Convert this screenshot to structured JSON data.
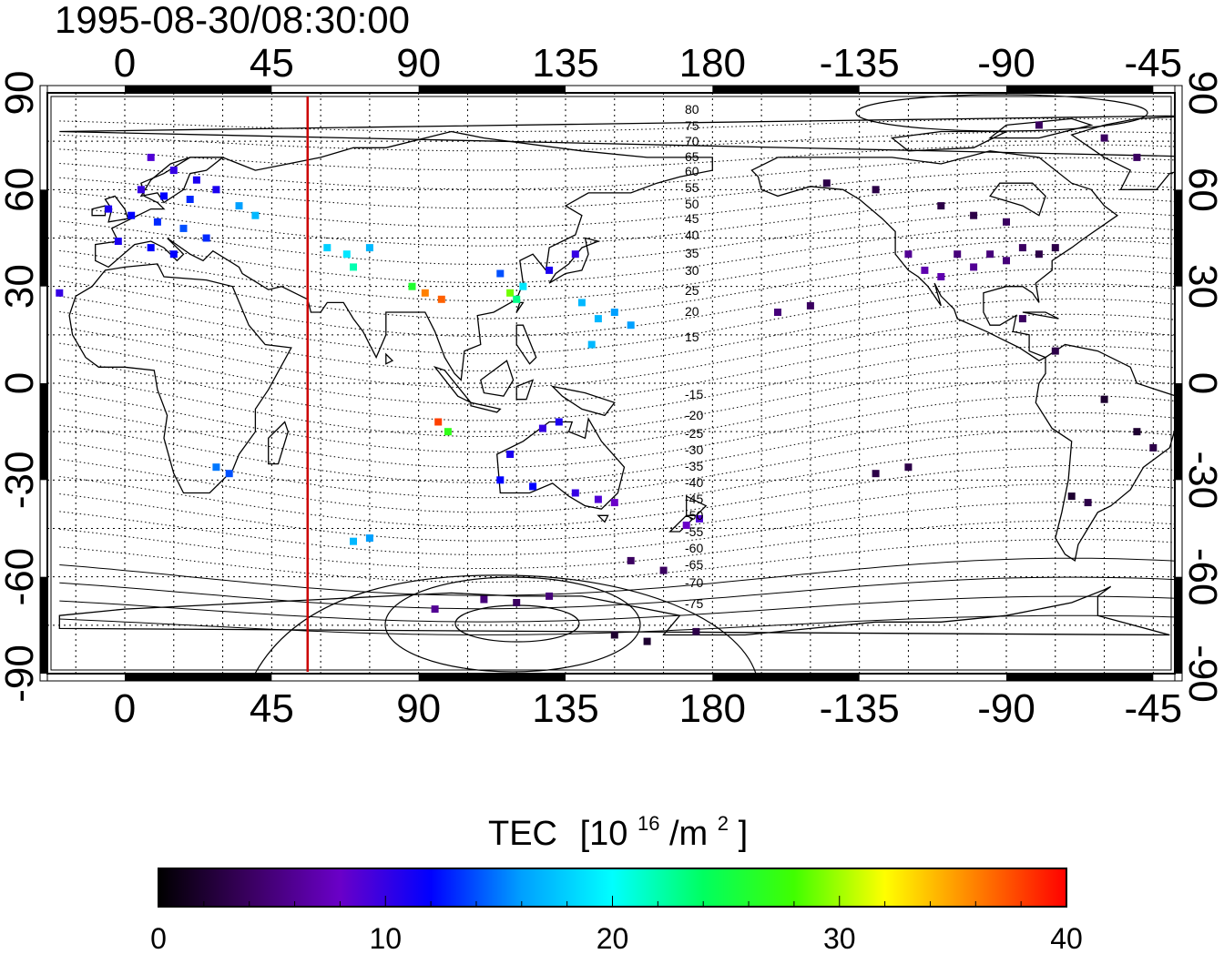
{
  "title": "1995-08-30/08:30:00",
  "top_axis_labels": [
    "0",
    "45",
    "90",
    "135",
    "180",
    "-135",
    "-90",
    "-45"
  ],
  "bottom_axis_labels": [
    "0",
    "45",
    "90",
    "135",
    "180",
    "-135",
    "-90",
    "-45"
  ],
  "left_axis_labels": [
    "90",
    "60",
    "30",
    "0",
    "-30",
    "-60",
    "-90"
  ],
  "right_axis_labels": [
    "90",
    "60",
    "30",
    "0",
    "-30",
    "-60",
    "-90"
  ],
  "contour_labels_north": [
    "80",
    "75",
    "70",
    "65",
    "60",
    "55",
    "50",
    "45",
    "40",
    "35",
    "30",
    "25",
    "20",
    "15"
  ],
  "contour_labels_south": [
    "-15",
    "-20",
    "-25",
    "-30",
    "-35",
    "-40",
    "-45",
    "-50",
    "-55",
    "-60",
    "-65",
    "-70",
    "-75"
  ],
  "colorbar": {
    "title": "TEC",
    "unit_base": "[10",
    "unit_exp": "16",
    "unit_mid": "/m",
    "unit_exp2": "2",
    "unit_end": "]",
    "tick_labels": [
      "0",
      "10",
      "20",
      "30",
      "40"
    ],
    "min": 0,
    "max": 40,
    "stops": [
      "#000000",
      "#3a0060",
      "#6a00c8",
      "#0000ff",
      "#00a0ff",
      "#00ffff",
      "#00ff60",
      "#40ff00",
      "#ffff00",
      "#ff8000",
      "#ff0000"
    ]
  },
  "map": {
    "longitude_center": 50,
    "lon_range": [
      -20,
      337
    ],
    "lat_range": [
      -90,
      90
    ],
    "terminator_longitude": 56,
    "terminator_color": "#cc0000",
    "grid": true
  },
  "tec_observations": [
    {
      "lon": 8,
      "lat": 70,
      "tec": 9
    },
    {
      "lon": 15,
      "lat": 66,
      "tec": 10
    },
    {
      "lon": 22,
      "lat": 63,
      "tec": 11
    },
    {
      "lon": 5,
      "lat": 60,
      "tec": 10
    },
    {
      "lon": 12,
      "lat": 58,
      "tec": 12
    },
    {
      "lon": 20,
      "lat": 57,
      "tec": 13
    },
    {
      "lon": 28,
      "lat": 60,
      "tec": 11
    },
    {
      "lon": -5,
      "lat": 54,
      "tec": 11
    },
    {
      "lon": 2,
      "lat": 52,
      "tec": 12
    },
    {
      "lon": 10,
      "lat": 50,
      "tec": 13
    },
    {
      "lon": 18,
      "lat": 48,
      "tec": 14
    },
    {
      "lon": 25,
      "lat": 45,
      "tec": 13
    },
    {
      "lon": -2,
      "lat": 44,
      "tec": 11
    },
    {
      "lon": 8,
      "lat": 42,
      "tec": 12
    },
    {
      "lon": 15,
      "lat": 40,
      "tec": 12
    },
    {
      "lon": 35,
      "lat": 55,
      "tec": 16
    },
    {
      "lon": 40,
      "lat": 52,
      "tec": 17
    },
    {
      "lon": -20,
      "lat": 28,
      "tec": 10
    },
    {
      "lon": 62,
      "lat": 42,
      "tec": 18
    },
    {
      "lon": 68,
      "lat": 40,
      "tec": 19
    },
    {
      "lon": 75,
      "lat": 42,
      "tec": 17
    },
    {
      "lon": 70,
      "lat": 36,
      "tec": 22
    },
    {
      "lon": 88,
      "lat": 30,
      "tec": 26
    },
    {
      "lon": 92,
      "lat": 28,
      "tec": 36
    },
    {
      "lon": 97,
      "lat": 26,
      "tec": 37
    },
    {
      "lon": 115,
      "lat": 34,
      "tec": 14
    },
    {
      "lon": 122,
      "lat": 30,
      "tec": 19
    },
    {
      "lon": 118,
      "lat": 28,
      "tec": 29
    },
    {
      "lon": 120,
      "lat": 26,
      "tec": 23
    },
    {
      "lon": 130,
      "lat": 35,
      "tec": 11
    },
    {
      "lon": 138,
      "lat": 40,
      "tec": 10
    },
    {
      "lon": 140,
      "lat": 25,
      "tec": 17
    },
    {
      "lon": 145,
      "lat": 20,
      "tec": 17
    },
    {
      "lon": 150,
      "lat": 22,
      "tec": 16
    },
    {
      "lon": 155,
      "lat": 18,
      "tec": 16
    },
    {
      "lon": 143,
      "lat": 12,
      "tec": 17
    },
    {
      "lon": 96,
      "lat": -12,
      "tec": 38
    },
    {
      "lon": 99,
      "lat": -15,
      "tec": 27
    },
    {
      "lon": 128,
      "lat": -14,
      "tec": 10
    },
    {
      "lon": 133,
      "lat": -12,
      "tec": 11
    },
    {
      "lon": 118,
      "lat": -22,
      "tec": 11
    },
    {
      "lon": 115,
      "lat": -30,
      "tec": 12
    },
    {
      "lon": 125,
      "lat": -32,
      "tec": 12
    },
    {
      "lon": 138,
      "lat": -34,
      "tec": 10
    },
    {
      "lon": 145,
      "lat": -36,
      "tec": 9
    },
    {
      "lon": 150,
      "lat": -37,
      "tec": 8
    },
    {
      "lon": 172,
      "lat": -44,
      "tec": 8
    },
    {
      "lon": 176,
      "lat": -42,
      "tec": 9
    },
    {
      "lon": 28,
      "lat": -26,
      "tec": 15
    },
    {
      "lon": 32,
      "lat": -28,
      "tec": 14
    },
    {
      "lon": 70,
      "lat": -49,
      "tec": 17
    },
    {
      "lon": 75,
      "lat": -48,
      "tec": 16
    },
    {
      "lon": 110,
      "lat": -67,
      "tec": 5
    },
    {
      "lon": 120,
      "lat": -68,
      "tec": 4
    },
    {
      "lon": 130,
      "lat": -66,
      "tec": 5
    },
    {
      "lon": 95,
      "lat": -70,
      "tec": 6
    },
    {
      "lon": 150,
      "lat": -78,
      "tec": 2
    },
    {
      "lon": 160,
      "lat": -80,
      "tec": 2
    },
    {
      "lon": 175,
      "lat": -77,
      "tec": 3
    },
    {
      "lon": 155,
      "lat": -55,
      "tec": 4
    },
    {
      "lon": 165,
      "lat": -58,
      "tec": 4
    },
    {
      "lon": -160,
      "lat": 22,
      "tec": 5
    },
    {
      "lon": -150,
      "lat": 24,
      "tec": 4
    },
    {
      "lon": -120,
      "lat": 40,
      "tec": 6
    },
    {
      "lon": -115,
      "lat": 35,
      "tec": 7
    },
    {
      "lon": -110,
      "lat": 33,
      "tec": 7
    },
    {
      "lon": -105,
      "lat": 40,
      "tec": 5
    },
    {
      "lon": -100,
      "lat": 36,
      "tec": 6
    },
    {
      "lon": -95,
      "lat": 40,
      "tec": 5
    },
    {
      "lon": -90,
      "lat": 38,
      "tec": 5
    },
    {
      "lon": -85,
      "lat": 42,
      "tec": 4
    },
    {
      "lon": -80,
      "lat": 40,
      "tec": 3
    },
    {
      "lon": -75,
      "lat": 42,
      "tec": 3
    },
    {
      "lon": -100,
      "lat": 52,
      "tec": 3
    },
    {
      "lon": -110,
      "lat": 55,
      "tec": 3
    },
    {
      "lon": -90,
      "lat": 50,
      "tec": 4
    },
    {
      "lon": -130,
      "lat": 60,
      "tec": 3
    },
    {
      "lon": -145,
      "lat": 62,
      "tec": 3
    },
    {
      "lon": -80,
      "lat": 80,
      "tec": 4
    },
    {
      "lon": -60,
      "lat": 76,
      "tec": 4
    },
    {
      "lon": -50,
      "lat": 70,
      "tec": 4
    },
    {
      "lon": -85,
      "lat": 20,
      "tec": 4
    },
    {
      "lon": -75,
      "lat": 10,
      "tec": 3
    },
    {
      "lon": -60,
      "lat": -5,
      "tec": 2
    },
    {
      "lon": -50,
      "lat": -15,
      "tec": 2
    },
    {
      "lon": -45,
      "lat": -20,
      "tec": 3
    },
    {
      "lon": -70,
      "lat": -35,
      "tec": 2
    },
    {
      "lon": -65,
      "lat": -37,
      "tec": 3
    },
    {
      "lon": -130,
      "lat": -28,
      "tec": 3
    },
    {
      "lon": -120,
      "lat": -26,
      "tec": 3
    }
  ]
}
